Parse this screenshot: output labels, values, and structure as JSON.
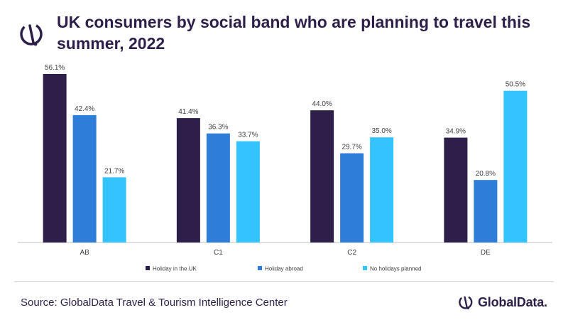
{
  "title": "UK consumers by social band who are planning to travel this summer, 2022",
  "source": "Source: GlobalData Travel & Tourism Intelligence Center",
  "brand": "GlobalData.",
  "colors": {
    "title": "#2e1f4a",
    "axis": "#bfbfbf"
  },
  "chart_data": {
    "type": "bar",
    "categories": [
      "AB",
      "C1",
      "C2",
      "DE"
    ],
    "series": [
      {
        "name": "Holiday in the UK",
        "color": "#2e1f4a",
        "values": [
          56.1,
          41.4,
          44.0,
          34.9
        ]
      },
      {
        "name": "Holiday abroad",
        "color": "#2e7dd8",
        "values": [
          42.4,
          36.3,
          29.7,
          20.8
        ]
      },
      {
        "name": "No holidays planned",
        "color": "#33c3ff",
        "values": [
          21.7,
          33.7,
          35.0,
          50.5
        ]
      }
    ],
    "value_suffix": "%",
    "ylim": [
      0,
      56.1
    ],
    "grid": false,
    "legend": "bottom"
  }
}
